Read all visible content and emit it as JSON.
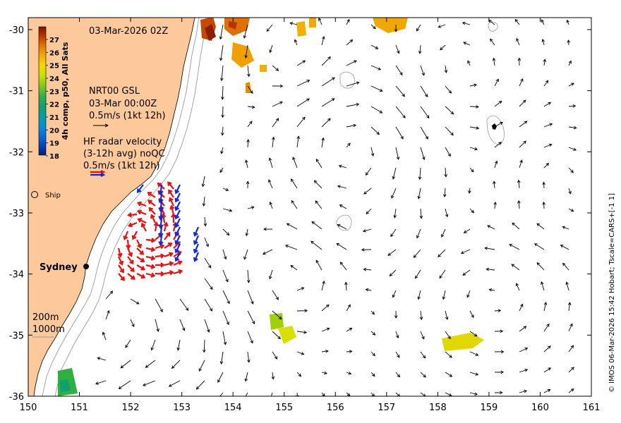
{
  "title_date": "03-Mar-2026 02Z",
  "colorbar": {
    "label": "4h comp, p50, All Sats",
    "ticks": [
      "27",
      "26",
      "25",
      "24",
      "23",
      "22",
      "21",
      "20",
      "19",
      "18"
    ],
    "colors": [
      "#7a1400",
      "#b83400",
      "#e07000",
      "#f2a800",
      "#f5d800",
      "#d8e000",
      "#a0d000",
      "#5cc030",
      "#28b050",
      "#10a070",
      "#00a0a0",
      "#0090d0",
      "#0070e0",
      "#0048c8",
      "#002a90"
    ]
  },
  "legend": {
    "nrt_title": "NRT00 GSL",
    "nrt_time": "03-Mar 00:00Z",
    "nrt_scale": "0.5m/s (1kt 12h)",
    "hf_title": "HF radar velocity",
    "hf_avg": "(3-12h avg) noQC",
    "hf_scale": "0.5m/s (1kt 12h)",
    "ship": "Ship",
    "depth_200": "200m",
    "depth_1000": "1000m"
  },
  "city": "Sydney",
  "credit": "© IMOS 06-Mar-2026 15:42 Hobart; Tscale=CARS+[-1 1]",
  "x_axis": {
    "ticks": [
      "150",
      "151",
      "152",
      "153",
      "154",
      "155",
      "156",
      "157",
      "158",
      "159",
      "160",
      "161"
    ]
  },
  "y_axis": {
    "ticks": [
      "-30",
      "-31",
      "-32",
      "-33",
      "-34",
      "-35",
      "-36"
    ]
  },
  "colors": {
    "land": "#fdc99a",
    "arrow": "#000000",
    "radar_red": "#e81010",
    "radar_blue": "#1028e0"
  }
}
